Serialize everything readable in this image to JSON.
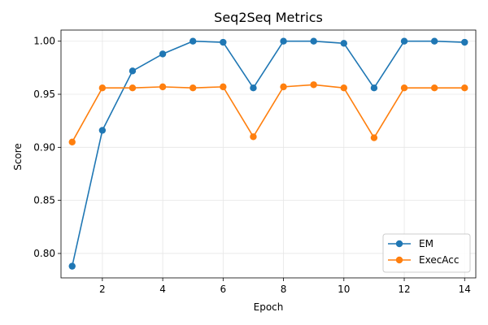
{
  "chart_data": {
    "type": "line",
    "title": "Seq2Seq Metrics",
    "xlabel": "Epoch",
    "ylabel": "Score",
    "x": [
      1,
      2,
      3,
      4,
      5,
      6,
      7,
      8,
      9,
      10,
      11,
      12,
      13,
      14
    ],
    "xticks": [
      2,
      4,
      6,
      8,
      10,
      12,
      14
    ],
    "yticks": [
      0.8,
      0.85,
      0.9,
      0.95,
      1.0
    ],
    "ytick_labels": [
      "0.80",
      "0.85",
      "0.90",
      "0.95",
      "1.00"
    ],
    "xlim": [
      0.63,
      14.37
    ],
    "ylim": [
      0.777,
      1.0105
    ],
    "grid": true,
    "legend_position": "bottom-right",
    "series": [
      {
        "name": "EM",
        "color": "#1f77b4",
        "values": [
          0.788,
          0.916,
          0.972,
          0.988,
          1.0,
          0.999,
          0.956,
          1.0,
          1.0,
          0.998,
          0.956,
          1.0,
          1.0,
          0.999
        ]
      },
      {
        "name": "ExecAcc",
        "color": "#ff7f0e",
        "values": [
          0.905,
          0.956,
          0.956,
          0.957,
          0.956,
          0.957,
          0.91,
          0.957,
          0.959,
          0.956,
          0.909,
          0.956,
          0.956,
          0.956
        ]
      }
    ]
  }
}
